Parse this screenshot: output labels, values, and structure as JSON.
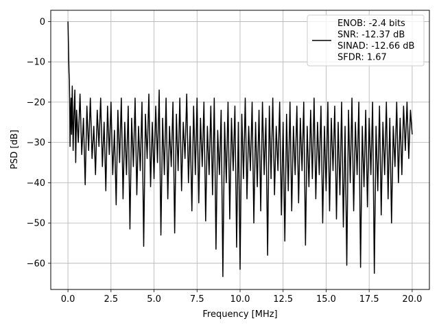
{
  "chart_data": {
    "type": "line",
    "title": "",
    "xlabel": "Frequency [MHz]",
    "ylabel": "PSD [dB]",
    "xlim": [
      -1.0,
      21.0
    ],
    "ylim": [
      -66.5,
      2.8
    ],
    "xticks": [
      0.0,
      2.5,
      5.0,
      7.5,
      10.0,
      12.5,
      15.0,
      17.5,
      20.0
    ],
    "xtick_labels": [
      "0.0",
      "2.5",
      "5.0",
      "7.5",
      "10.0",
      "12.5",
      "15.0",
      "17.5",
      "20.0"
    ],
    "yticks": [
      0,
      -10,
      -20,
      -30,
      -40,
      -50,
      -60
    ],
    "ytick_labels": [
      "0",
      "−10",
      "−20",
      "−30",
      "−40",
      "−50",
      "−60"
    ],
    "grid": true,
    "legend_position": "upper-right",
    "series": [
      {
        "name": "ENOB: -2.4 bits\nSNR: -12.37 dB\nSINAD: -12.66 dB\nSFDR: 1.67",
        "color": "#000000",
        "x": [
          0.0,
          0.02,
          0.04,
          0.06,
          0.08,
          0.1,
          0.12,
          0.15,
          0.18,
          0.21,
          0.25,
          0.3,
          0.35,
          0.4,
          0.45,
          0.5,
          0.6,
          0.7,
          0.8,
          0.9,
          1.0,
          1.1,
          1.2,
          1.3,
          1.4,
          1.5,
          1.6,
          1.7,
          1.8,
          1.9,
          2.0,
          2.1,
          2.2,
          2.3,
          2.4,
          2.5,
          2.6,
          2.7,
          2.8,
          2.9,
          3.0,
          3.1,
          3.2,
          3.3,
          3.4,
          3.5,
          3.6,
          3.7,
          3.8,
          3.9,
          4.0,
          4.1,
          4.2,
          4.3,
          4.4,
          4.5,
          4.6,
          4.7,
          4.8,
          4.9,
          5.0,
          5.1,
          5.2,
          5.3,
          5.4,
          5.5,
          5.6,
          5.7,
          5.8,
          5.9,
          6.0,
          6.1,
          6.2,
          6.3,
          6.4,
          6.5,
          6.6,
          6.7,
          6.8,
          6.9,
          7.0,
          7.1,
          7.2,
          7.3,
          7.4,
          7.5,
          7.6,
          7.7,
          7.8,
          7.9,
          8.0,
          8.1,
          8.2,
          8.3,
          8.4,
          8.5,
          8.6,
          8.7,
          8.8,
          8.9,
          9.0,
          9.1,
          9.2,
          9.3,
          9.4,
          9.5,
          9.6,
          9.7,
          9.8,
          9.9,
          10.0,
          10.1,
          10.2,
          10.3,
          10.4,
          10.5,
          10.6,
          10.7,
          10.8,
          10.9,
          11.0,
          11.1,
          11.2,
          11.3,
          11.4,
          11.5,
          11.6,
          11.7,
          11.8,
          11.9,
          12.0,
          12.1,
          12.2,
          12.3,
          12.4,
          12.5,
          12.6,
          12.7,
          12.8,
          12.9,
          13.0,
          13.1,
          13.2,
          13.3,
          13.4,
          13.5,
          13.6,
          13.7,
          13.8,
          13.9,
          14.0,
          14.1,
          14.2,
          14.3,
          14.4,
          14.5,
          14.6,
          14.7,
          14.8,
          14.9,
          15.0,
          15.1,
          15.2,
          15.3,
          15.4,
          15.5,
          15.6,
          15.7,
          15.8,
          15.9,
          16.0,
          16.1,
          16.2,
          16.3,
          16.4,
          16.5,
          16.6,
          16.7,
          16.8,
          16.9,
          17.0,
          17.1,
          17.2,
          17.3,
          17.4,
          17.5,
          17.6,
          17.7,
          17.8,
          17.9,
          18.0,
          18.1,
          18.2,
          18.3,
          18.4,
          18.5,
          18.6,
          18.7,
          18.8,
          18.9,
          19.0,
          19.1,
          19.2,
          19.3,
          19.4,
          19.5,
          19.6,
          19.7,
          19.8,
          19.9,
          20.0
        ],
        "values": [
          0.0,
          -4.0,
          -8.5,
          -12.5,
          -14.5,
          -20.0,
          -31.0,
          -24.0,
          -19.0,
          -28.0,
          -16.0,
          -32.0,
          -23.0,
          -17.0,
          -35.0,
          -22.0,
          -30.0,
          -18.0,
          -33.0,
          -24.0,
          -40.5,
          -21.0,
          -32.0,
          -19.0,
          -34.0,
          -26.0,
          -38.0,
          -22.0,
          -31.0,
          -19.0,
          -36.0,
          -25.0,
          -42.0,
          -21.0,
          -33.0,
          -20.0,
          -38.0,
          -27.0,
          -45.5,
          -22.0,
          -35.0,
          -19.0,
          -44.0,
          -25.0,
          -38.0,
          -21.0,
          -51.5,
          -24.0,
          -36.0,
          -19.0,
          -43.0,
          -26.0,
          -37.0,
          -20.0,
          -55.8,
          -23.0,
          -34.0,
          -18.0,
          -41.0,
          -25.0,
          -39.0,
          -21.0,
          -35.0,
          -17.0,
          -53.0,
          -24.0,
          -38.0,
          -19.0,
          -44.0,
          -26.0,
          -36.0,
          -20.0,
          -52.5,
          -23.0,
          -37.0,
          -19.0,
          -42.0,
          -25.0,
          -34.0,
          -18.0,
          -40.0,
          -26.0,
          -47.0,
          -21.0,
          -38.0,
          -19.0,
          -45.0,
          -24.0,
          -36.0,
          -20.0,
          -49.5,
          -26.0,
          -38.0,
          -21.0,
          -43.0,
          -19.0,
          -56.5,
          -27.0,
          -38.0,
          -22.0,
          -63.3,
          -25.0,
          -40.0,
          -20.0,
          -49.0,
          -24.0,
          -37.0,
          -21.0,
          -56.0,
          -25.0,
          -61.5,
          -23.0,
          -39.0,
          -19.0,
          -44.0,
          -26.0,
          -37.0,
          -20.0,
          -50.0,
          -25.0,
          -41.0,
          -22.0,
          -47.0,
          -20.0,
          -38.0,
          -24.0,
          -58.0,
          -21.0,
          -39.0,
          -19.0,
          -43.0,
          -26.0,
          -37.0,
          -20.0,
          -48.0,
          -25.0,
          -54.5,
          -23.0,
          -42.0,
          -20.0,
          -47.0,
          -26.0,
          -38.0,
          -21.0,
          -45.0,
          -24.0,
          -37.0,
          -20.0,
          -55.5,
          -26.0,
          -41.0,
          -22.0,
          -39.0,
          -19.0,
          -44.0,
          -25.0,
          -38.0,
          -21.0,
          -50.0,
          -26.0,
          -42.0,
          -20.0,
          -47.0,
          -24.0,
          -37.0,
          -21.0,
          -49.0,
          -25.0,
          -43.0,
          -20.0,
          -51.0,
          -26.0,
          -60.5,
          -22.0,
          -40.0,
          -19.0,
          -47.0,
          -25.0,
          -38.0,
          -20.0,
          -61.0,
          -26.0,
          -41.0,
          -22.0,
          -46.0,
          -24.0,
          -38.0,
          -20.0,
          -62.5,
          -26.0,
          -42.0,
          -21.0,
          -48.0,
          -25.0,
          -38.0,
          -20.0,
          -44.0,
          -24.0,
          -50.0,
          -26.0,
          -36.0,
          -20.0,
          -40.0,
          -24.0,
          -38.0,
          -21.0,
          -32.0,
          -20.0,
          -34.0,
          -22.0,
          -28.0
        ]
      }
    ]
  }
}
